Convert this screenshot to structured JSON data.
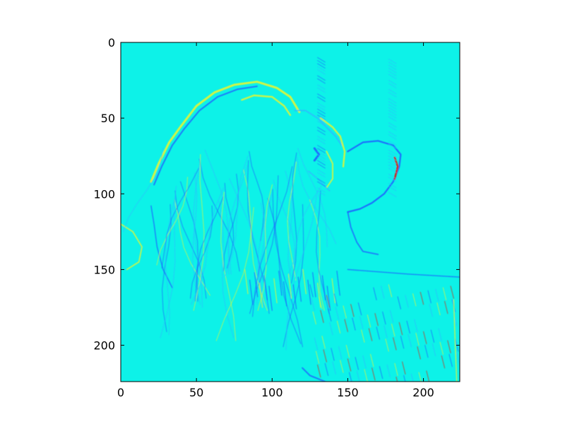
{
  "chart_data": {
    "type": "heatmap",
    "title": "",
    "xlabel": "",
    "ylabel": "",
    "image_size": [
      224,
      224
    ],
    "xlim": [
      0,
      224
    ],
    "ylim": [
      224,
      0
    ],
    "colormap": "jet",
    "grid": false,
    "x_ticks": [
      {
        "value": 0,
        "label": "0"
      },
      {
        "value": 50,
        "label": "50"
      },
      {
        "value": 100,
        "label": "100"
      },
      {
        "value": 150,
        "label": "150"
      },
      {
        "value": 200,
        "label": "200"
      }
    ],
    "y_ticks": [
      {
        "value": 0,
        "label": "0"
      },
      {
        "value": 50,
        "label": "50"
      },
      {
        "value": 100,
        "label": "100"
      },
      {
        "value": 150,
        "label": "150"
      },
      {
        "value": 200,
        "label": "200"
      }
    ],
    "colors": {
      "background": "#0df2e8",
      "low_edge": "#1f5fff",
      "mid_edge": "#2fb8ff",
      "high_edge": "#e8f530",
      "peak_edge": "#d42a10"
    }
  }
}
